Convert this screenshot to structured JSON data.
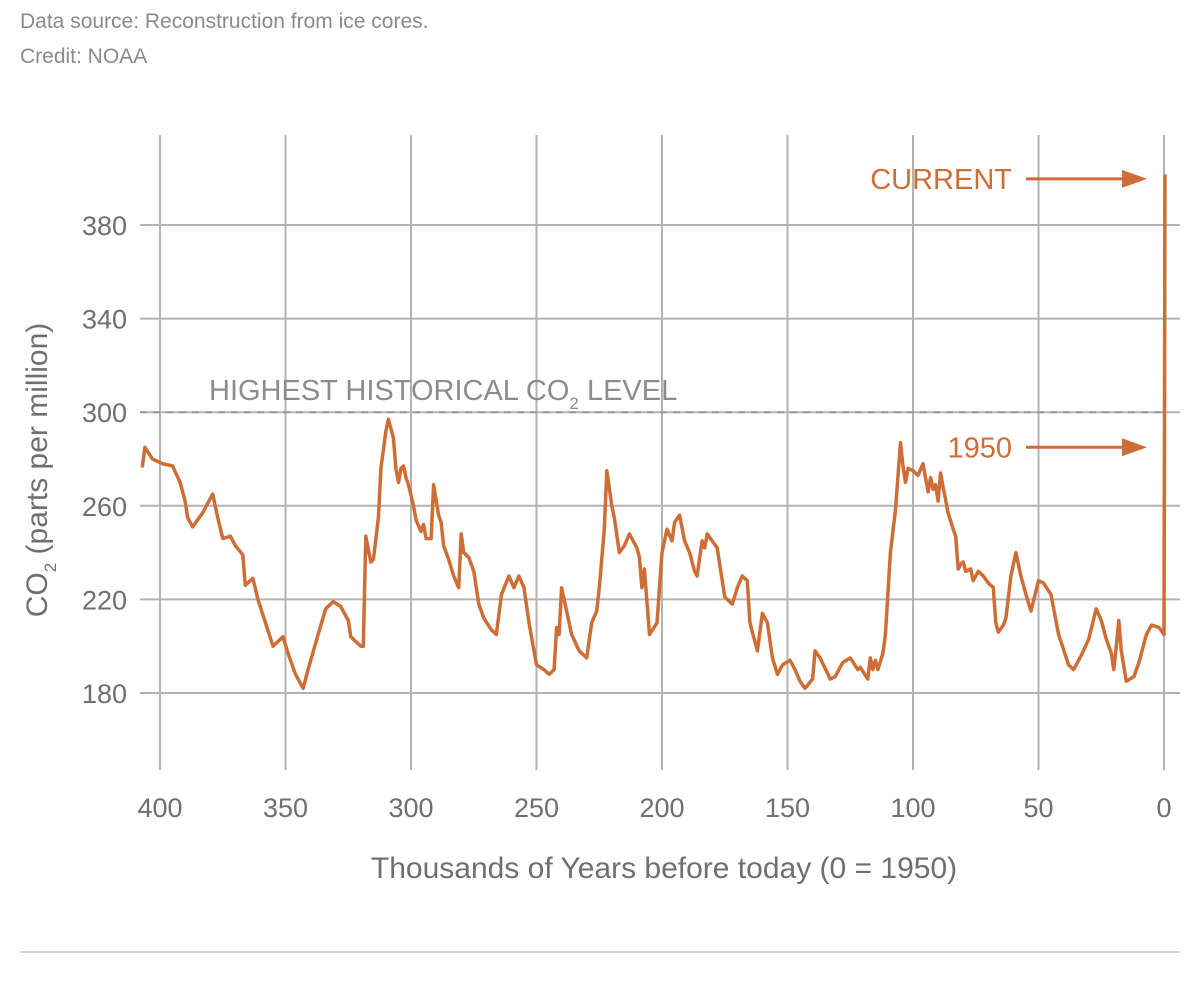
{
  "source": {
    "line1": "Data source: Reconstruction from ice cores.",
    "line2": "Credit: NOAA"
  },
  "chart_data": {
    "type": "line",
    "title": "",
    "xlabel": "Thousands of Years before today (0 = 1950)",
    "ylabel_main": "CO",
    "ylabel_sub": "2",
    "ylabel_rest": " (parts per million)",
    "xlim": [
      407,
      0
    ],
    "ylim": [
      150,
      410
    ],
    "x_ticks": [
      400,
      350,
      300,
      250,
      200,
      150,
      100,
      50,
      0
    ],
    "y_ticks": [
      180,
      220,
      260,
      300,
      340,
      380
    ],
    "grid": true,
    "line_color": "#cf6d37",
    "grid_color": "#b3b3b3",
    "reference_line": {
      "value": 300,
      "label_main": "HIGHEST HISTORICAL CO",
      "label_sub": "2",
      "label_rest": " LEVEL"
    },
    "annotations": [
      {
        "label": "CURRENT",
        "target_y": 401
      },
      {
        "label": "1950",
        "target_y": 285
      }
    ],
    "series": [
      {
        "points": [
          [
            407,
            277
          ],
          [
            406,
            285
          ],
          [
            403,
            280
          ],
          [
            399,
            278
          ],
          [
            395,
            277
          ],
          [
            392,
            270
          ],
          [
            390,
            262
          ],
          [
            389,
            255
          ],
          [
            387,
            251
          ],
          [
            383,
            257
          ],
          [
            379,
            265
          ],
          [
            377,
            255
          ],
          [
            375,
            246
          ],
          [
            372,
            247
          ],
          [
            370,
            243
          ],
          [
            367,
            239
          ],
          [
            366,
            226
          ],
          [
            363,
            229
          ],
          [
            361,
            220
          ],
          [
            355,
            200
          ],
          [
            351,
            204
          ],
          [
            349,
            197
          ],
          [
            346,
            188
          ],
          [
            343,
            182
          ],
          [
            341,
            190
          ],
          [
            337,
            205
          ],
          [
            334,
            216
          ],
          [
            331,
            219
          ],
          [
            328,
            217
          ],
          [
            325,
            211
          ],
          [
            324,
            204
          ],
          [
            320,
            200
          ],
          [
            319,
            200
          ],
          [
            318,
            247
          ],
          [
            316,
            236
          ],
          [
            315,
            237
          ],
          [
            313,
            255
          ],
          [
            312,
            276
          ],
          [
            310,
            292
          ],
          [
            309,
            297
          ],
          [
            307,
            289
          ],
          [
            306,
            276
          ],
          [
            305,
            270
          ],
          [
            304,
            276
          ],
          [
            303,
            277
          ],
          [
            302,
            272
          ],
          [
            301,
            269
          ],
          [
            299,
            260
          ],
          [
            298,
            254
          ],
          [
            296,
            249
          ],
          [
            295,
            252
          ],
          [
            294,
            246
          ],
          [
            292,
            246
          ],
          [
            291,
            269
          ],
          [
            289,
            256
          ],
          [
            288,
            253
          ],
          [
            287,
            243
          ],
          [
            285,
            237
          ],
          [
            283,
            230
          ],
          [
            281,
            225
          ],
          [
            280,
            248
          ],
          [
            279,
            240
          ],
          [
            277,
            238
          ],
          [
            275,
            232
          ],
          [
            273,
            218
          ],
          [
            271,
            212
          ],
          [
            268,
            207
          ],
          [
            266,
            205
          ],
          [
            264,
            222
          ],
          [
            261,
            230
          ],
          [
            259,
            225
          ],
          [
            257,
            230
          ],
          [
            255,
            225
          ],
          [
            253,
            210
          ],
          [
            250,
            192
          ],
          [
            247,
            190
          ],
          [
            245,
            188
          ],
          [
            243,
            190
          ],
          [
            242,
            208
          ],
          [
            241,
            205
          ],
          [
            240,
            225
          ],
          [
            239,
            220
          ],
          [
            236,
            205
          ],
          [
            233,
            198
          ],
          [
            230,
            195
          ],
          [
            228,
            210
          ],
          [
            226,
            215
          ],
          [
            225,
            225
          ],
          [
            223,
            250
          ],
          [
            222,
            275
          ],
          [
            220,
            260
          ],
          [
            219,
            255
          ],
          [
            217,
            240
          ],
          [
            215,
            243
          ],
          [
            213,
            248
          ],
          [
            210,
            242
          ],
          [
            209,
            238
          ],
          [
            208,
            225
          ],
          [
            207,
            233
          ],
          [
            205,
            205
          ],
          [
            202,
            210
          ],
          [
            200,
            240
          ],
          [
            198,
            250
          ],
          [
            196,
            245
          ],
          [
            195,
            253
          ],
          [
            193,
            256
          ],
          [
            191,
            245
          ],
          [
            189,
            240
          ],
          [
            187,
            232
          ],
          [
            186,
            230
          ],
          [
            185,
            238
          ],
          [
            184,
            245
          ],
          [
            183,
            242
          ],
          [
            182,
            248
          ],
          [
            180,
            245
          ],
          [
            178,
            242
          ],
          [
            177,
            235
          ],
          [
            175,
            221
          ],
          [
            172,
            218
          ],
          [
            170,
            225
          ],
          [
            168,
            230
          ],
          [
            166,
            228
          ],
          [
            165,
            210
          ],
          [
            162,
            198
          ],
          [
            160,
            214
          ],
          [
            158,
            210
          ],
          [
            156,
            195
          ],
          [
            154,
            188
          ],
          [
            152,
            192
          ],
          [
            149,
            194
          ],
          [
            147,
            190
          ],
          [
            145,
            185
          ],
          [
            143,
            182
          ],
          [
            140,
            186
          ],
          [
            139,
            198
          ],
          [
            137,
            195
          ],
          [
            133,
            186
          ],
          [
            131,
            187
          ],
          [
            128,
            193
          ],
          [
            125,
            195
          ],
          [
            122,
            190
          ],
          [
            121,
            191
          ],
          [
            118,
            186
          ],
          [
            117,
            195
          ],
          [
            116,
            190
          ],
          [
            115,
            194
          ],
          [
            114,
            190
          ],
          [
            112,
            197
          ],
          [
            111,
            205
          ],
          [
            109,
            240
          ],
          [
            107,
            258
          ],
          [
            105,
            287
          ],
          [
            104,
            277
          ],
          [
            103,
            270
          ],
          [
            102,
            276
          ],
          [
            100,
            275
          ],
          [
            98,
            273
          ],
          [
            96,
            278
          ],
          [
            94,
            266
          ],
          [
            93,
            272
          ],
          [
            92,
            267
          ],
          [
            91,
            269
          ],
          [
            90,
            262
          ],
          [
            89,
            274
          ],
          [
            88,
            268
          ],
          [
            86,
            257
          ],
          [
            84,
            250
          ],
          [
            83,
            247
          ],
          [
            82,
            233
          ],
          [
            81,
            235
          ],
          [
            80,
            236
          ],
          [
            79,
            232
          ],
          [
            77,
            233
          ],
          [
            76,
            228
          ],
          [
            74,
            232
          ],
          [
            72,
            230
          ],
          [
            70,
            227
          ],
          [
            68,
            225
          ],
          [
            67,
            210
          ],
          [
            66,
            206
          ],
          [
            64,
            209
          ],
          [
            63,
            212
          ],
          [
            61,
            230
          ],
          [
            59,
            240
          ],
          [
            57,
            230
          ],
          [
            55,
            222
          ],
          [
            53,
            215
          ],
          [
            50,
            228
          ],
          [
            48,
            227
          ],
          [
            45,
            222
          ],
          [
            42,
            205
          ],
          [
            38,
            192
          ],
          [
            36,
            190
          ],
          [
            33,
            196
          ],
          [
            30,
            203
          ],
          [
            27,
            216
          ],
          [
            25,
            211
          ],
          [
            23,
            203
          ],
          [
            21,
            197
          ],
          [
            20,
            190
          ],
          [
            19,
            200
          ],
          [
            18,
            211
          ],
          [
            17,
            198
          ],
          [
            15,
            185
          ],
          [
            12,
            187
          ],
          [
            10,
            193
          ],
          [
            7,
            205
          ],
          [
            5,
            209
          ],
          [
            2,
            208
          ],
          [
            0,
            205
          ]
        ]
      }
    ]
  }
}
